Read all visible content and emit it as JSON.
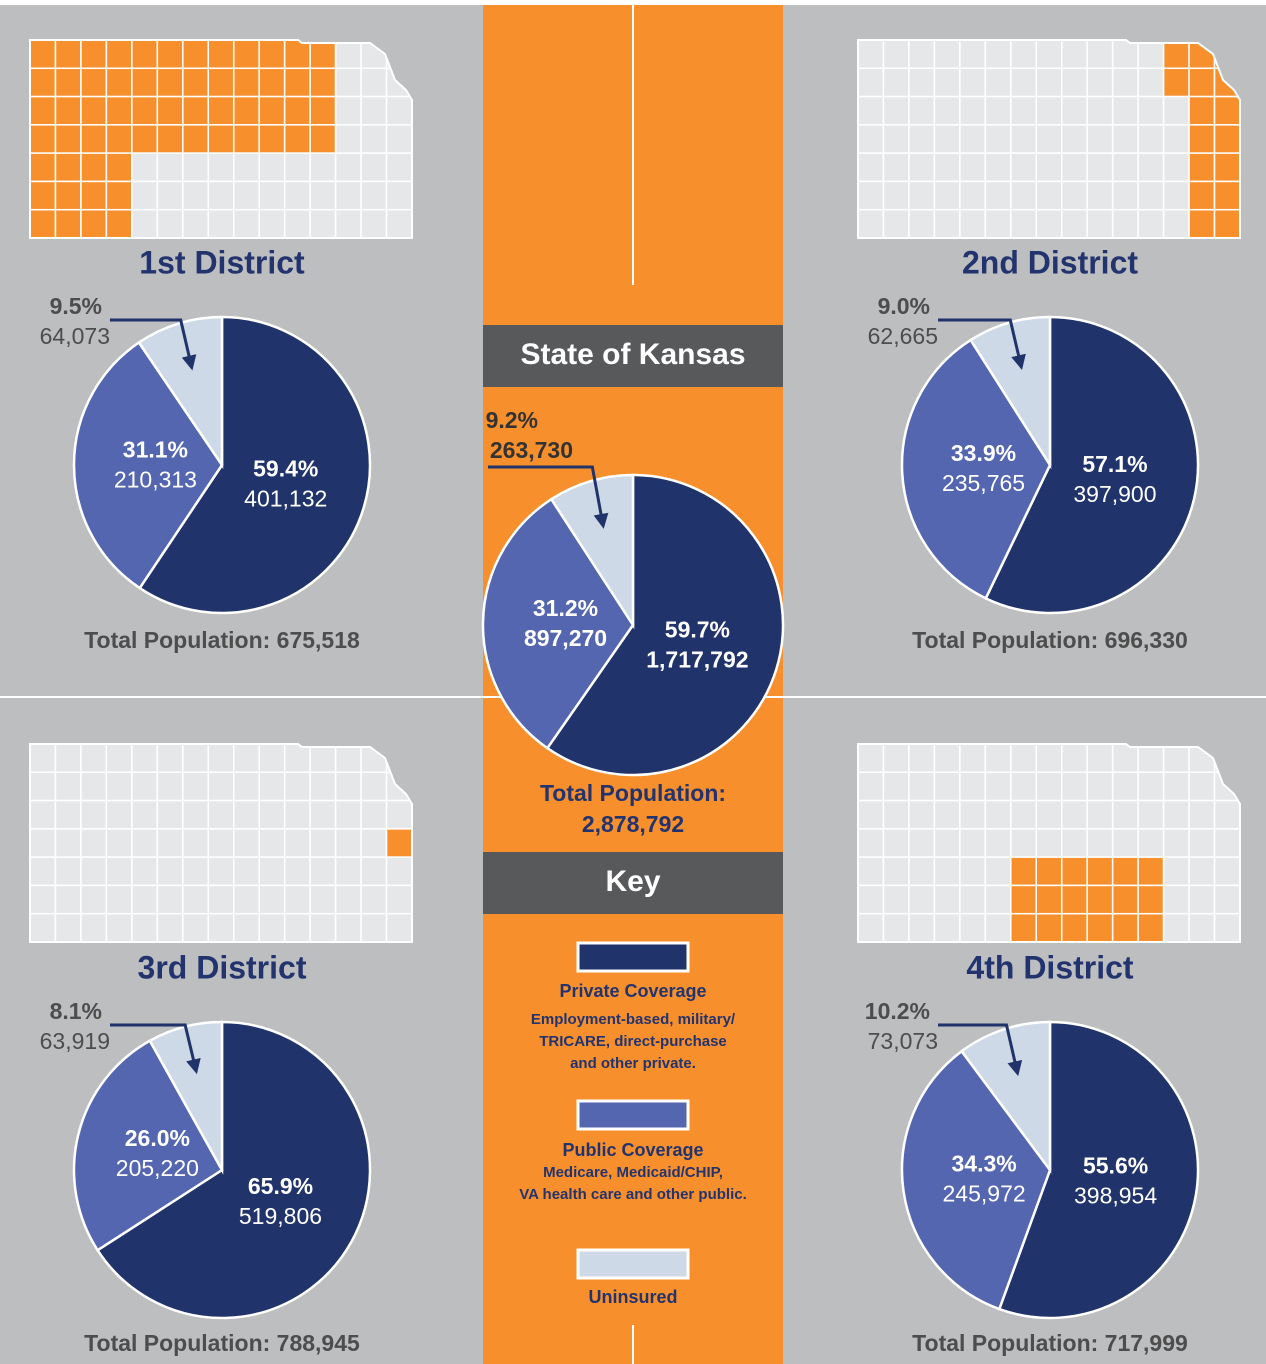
{
  "chart_data": [
    {
      "type": "pie",
      "title": "1st District",
      "values": [
        401132,
        210313,
        64073
      ],
      "value_labels": [
        "401,132",
        "210,313",
        "64,073"
      ],
      "percent_labels": [
        "59.4%",
        "31.1%",
        "9.5%"
      ],
      "colors": [
        "#21336b",
        "#5566b0",
        "#cdd9e6"
      ],
      "footer": [
        "Total Population: 675,518"
      ]
    },
    {
      "type": "pie",
      "title": "2nd District",
      "values": [
        397900,
        235765,
        62665
      ],
      "value_labels": [
        "397,900",
        "235,765",
        "62,665"
      ],
      "percent_labels": [
        "57.1%",
        "33.9%",
        "9.0%"
      ],
      "colors": [
        "#21336b",
        "#5566b0",
        "#cdd9e6"
      ],
      "footer": [
        "Total Population: 696,330"
      ]
    },
    {
      "type": "pie",
      "title": "3rd District",
      "values": [
        519806,
        205220,
        63919
      ],
      "value_labels": [
        "519,806",
        "205,220",
        "63,919"
      ],
      "percent_labels": [
        "65.9%",
        "26.0%",
        "8.1%"
      ],
      "colors": [
        "#21336b",
        "#5566b0",
        "#cdd9e6"
      ],
      "footer": [
        "Total Population: 788,945"
      ]
    },
    {
      "type": "pie",
      "title": "4th District",
      "values": [
        398954,
        245972,
        73073
      ],
      "value_labels": [
        "398,954",
        "245,972",
        "73,073"
      ],
      "percent_labels": [
        "55.6%",
        "34.3%",
        "10.2%"
      ],
      "colors": [
        "#21336b",
        "#5566b0",
        "#cdd9e6"
      ],
      "footer": [
        "Total Population: 717,999"
      ]
    },
    {
      "type": "pie",
      "title": "State of Kansas",
      "values": [
        1717792,
        897270,
        263730
      ],
      "value_labels": [
        "1,717,792",
        "897,270",
        "263,730"
      ],
      "percent_labels": [
        "59.7%",
        "31.2%",
        "9.2%"
      ],
      "colors": [
        "#21336b",
        "#5566b0",
        "#cdd9e6"
      ],
      "footer": [
        "Total Population:",
        "2,878,792"
      ]
    }
  ],
  "key": {
    "title": "Key",
    "items": [
      {
        "name": "Private Coverage",
        "color": "#21336b",
        "description": [
          "Employment-based, military/",
          "TRICARE, direct-purchase",
          "and other private."
        ]
      },
      {
        "name": "Public Coverage",
        "color": "#5566b0",
        "description": [
          "Medicare, Medicaid/CHIP,",
          "VA health care and other public."
        ]
      },
      {
        "name": "Uninsured",
        "color": "#cdd9e6",
        "description": []
      }
    ]
  }
}
